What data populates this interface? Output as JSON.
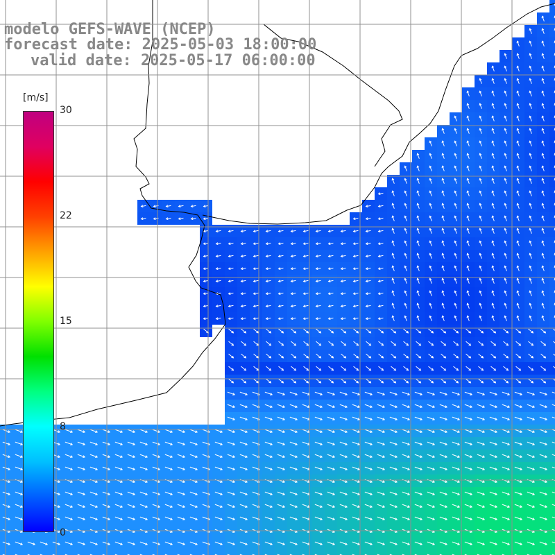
{
  "title": {
    "model": "modelo GEFS-WAVE (NCEP)",
    "forecast": "forecast date: 2025-05-03 18:00:00",
    "valid": "valid date: 2025-05-17 06:00:00"
  },
  "colorbar": {
    "units": "[m/s]",
    "ticks": [
      "30",
      "22",
      "15",
      "8",
      "0"
    ],
    "tick_values": [
      30,
      22,
      15,
      8,
      0
    ],
    "min": 0,
    "max": 30,
    "colors": [
      "#0000ff",
      "#0060ff",
      "#00c0ff",
      "#00ffff",
      "#00ff80",
      "#00e000",
      "#80ff00",
      "#ffff00",
      "#ffa000",
      "#ff4000",
      "#ff0000",
      "#e00060",
      "#c00080"
    ]
  },
  "map": {
    "field": "wind speed with direction arrows",
    "ocean_low_color": "#0033ee",
    "ocean_mid_color": "#1e90ff",
    "ocean_high_color": "#00ee66",
    "land_color": "#ffffff",
    "grid_color": "#909090",
    "coast_color": "#000000",
    "arrow_color": "#ffffff"
  }
}
